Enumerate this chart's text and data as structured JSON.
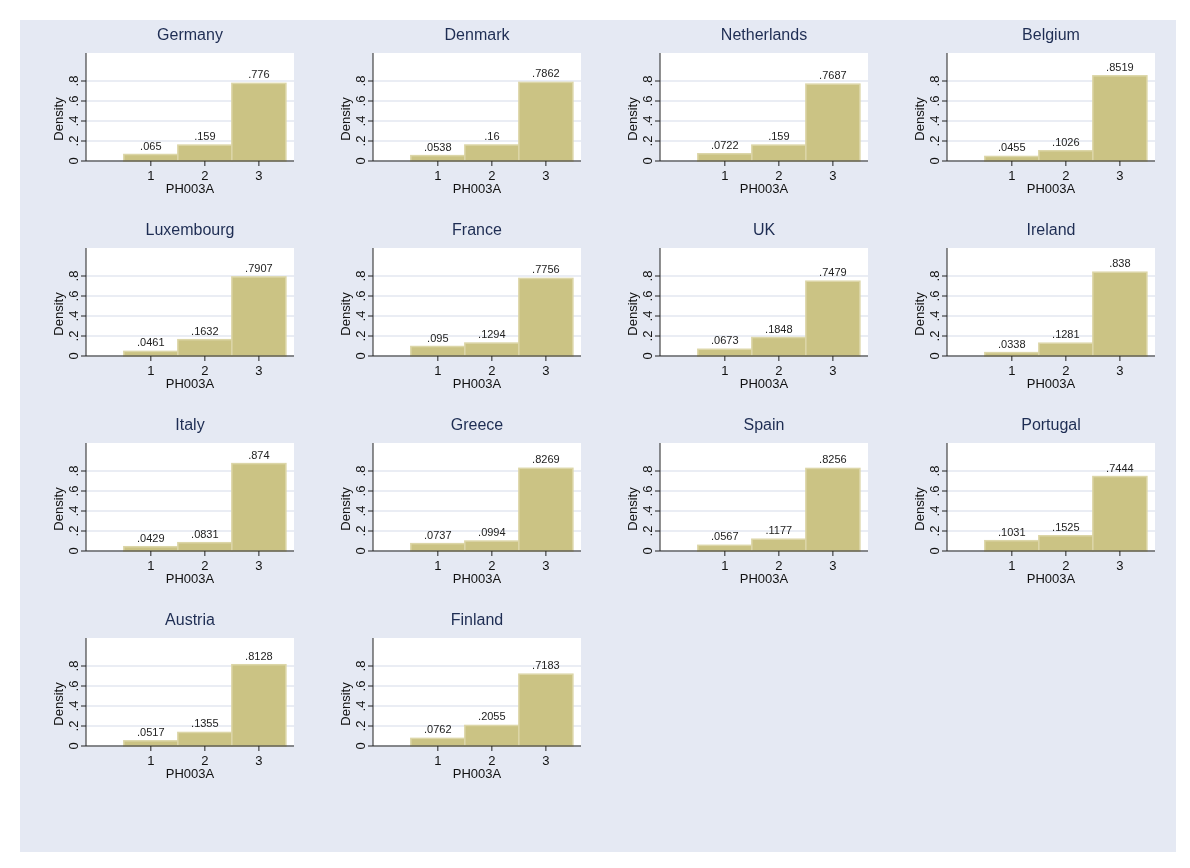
{
  "chart_data": [
    {
      "type": "histogram",
      "title": "Germany",
      "xlabel": "PH003A",
      "ylabel": "Density",
      "bins": [
        0.5,
        1.5,
        2.5,
        3.5
      ],
      "values": [
        0.065,
        0.159,
        0.776
      ],
      "value_labels": [
        ".065",
        ".159",
        ".776"
      ],
      "color": "#cbc384",
      "xlim": [
        -0.2,
        3.65
      ],
      "xticks": [
        1,
        2,
        3
      ],
      "ylim": [
        0,
        1.08
      ],
      "yticks": [
        {
          "value": 0,
          "label": "0"
        },
        {
          "value": 0.2,
          "label": ".2"
        },
        {
          "value": 0.4,
          "label": ".4"
        },
        {
          "value": 0.6,
          "label": ".6"
        },
        {
          "value": 0.8,
          "label": ".8"
        }
      ],
      "grid": "y"
    },
    {
      "type": "histogram",
      "title": "Denmark",
      "xlabel": "PH003A",
      "ylabel": "Density",
      "bins": [
        0.5,
        1.5,
        2.5,
        3.5
      ],
      "values": [
        0.0538,
        0.16,
        0.7862
      ],
      "value_labels": [
        ".0538",
        ".16",
        ".7862"
      ],
      "color": "#cbc384",
      "xlim": [
        -0.2,
        3.65
      ],
      "xticks": [
        1,
        2,
        3
      ],
      "ylim": [
        0,
        1.08
      ],
      "yticks": [
        {
          "value": 0,
          "label": "0"
        },
        {
          "value": 0.2,
          "label": ".2"
        },
        {
          "value": 0.4,
          "label": ".4"
        },
        {
          "value": 0.6,
          "label": ".6"
        },
        {
          "value": 0.8,
          "label": ".8"
        }
      ],
      "grid": "y"
    },
    {
      "type": "histogram",
      "title": "Netherlands",
      "xlabel": "PH003A",
      "ylabel": "Density",
      "bins": [
        0.5,
        1.5,
        2.5,
        3.5
      ],
      "values": [
        0.0722,
        0.159,
        0.7687
      ],
      "value_labels": [
        ".0722",
        ".159",
        ".7687"
      ],
      "color": "#cbc384",
      "xlim": [
        -0.2,
        3.65
      ],
      "xticks": [
        1,
        2,
        3
      ],
      "ylim": [
        0,
        1.08
      ],
      "yticks": [
        {
          "value": 0,
          "label": "0"
        },
        {
          "value": 0.2,
          "label": ".2"
        },
        {
          "value": 0.4,
          "label": ".4"
        },
        {
          "value": 0.6,
          "label": ".6"
        },
        {
          "value": 0.8,
          "label": ".8"
        }
      ],
      "grid": "y"
    },
    {
      "type": "histogram",
      "title": "Belgium",
      "xlabel": "PH003A",
      "ylabel": "Density",
      "bins": [
        0.5,
        1.5,
        2.5,
        3.5
      ],
      "values": [
        0.0455,
        0.1026,
        0.8519
      ],
      "value_labels": [
        ".0455",
        ".1026",
        ".8519"
      ],
      "color": "#cbc384",
      "xlim": [
        -0.2,
        3.65
      ],
      "xticks": [
        1,
        2,
        3
      ],
      "ylim": [
        0,
        1.08
      ],
      "yticks": [
        {
          "value": 0,
          "label": "0"
        },
        {
          "value": 0.2,
          "label": ".2"
        },
        {
          "value": 0.4,
          "label": ".4"
        },
        {
          "value": 0.6,
          "label": ".6"
        },
        {
          "value": 0.8,
          "label": ".8"
        }
      ],
      "grid": "y"
    },
    {
      "type": "histogram",
      "title": "Luxembourg",
      "xlabel": "PH003A",
      "ylabel": "Density",
      "bins": [
        0.5,
        1.5,
        2.5,
        3.5
      ],
      "values": [
        0.0461,
        0.1632,
        0.7907
      ],
      "value_labels": [
        ".0461",
        ".1632",
        ".7907"
      ],
      "color": "#cbc384",
      "xlim": [
        -0.2,
        3.65
      ],
      "xticks": [
        1,
        2,
        3
      ],
      "ylim": [
        0,
        1.08
      ],
      "yticks": [
        {
          "value": 0,
          "label": "0"
        },
        {
          "value": 0.2,
          "label": ".2"
        },
        {
          "value": 0.4,
          "label": ".4"
        },
        {
          "value": 0.6,
          "label": ".6"
        },
        {
          "value": 0.8,
          "label": ".8"
        }
      ],
      "grid": "y"
    },
    {
      "type": "histogram",
      "title": "France",
      "xlabel": "PH003A",
      "ylabel": "Density",
      "bins": [
        0.5,
        1.5,
        2.5,
        3.5
      ],
      "values": [
        0.095,
        0.1294,
        0.7756
      ],
      "value_labels": [
        ".095",
        ".1294",
        ".7756"
      ],
      "color": "#cbc384",
      "xlim": [
        -0.2,
        3.65
      ],
      "xticks": [
        1,
        2,
        3
      ],
      "ylim": [
        0,
        1.08
      ],
      "yticks": [
        {
          "value": 0,
          "label": "0"
        },
        {
          "value": 0.2,
          "label": ".2"
        },
        {
          "value": 0.4,
          "label": ".4"
        },
        {
          "value": 0.6,
          "label": ".6"
        },
        {
          "value": 0.8,
          "label": ".8"
        }
      ],
      "grid": "y"
    },
    {
      "type": "histogram",
      "title": "UK",
      "xlabel": "PH003A",
      "ylabel": "Density",
      "bins": [
        0.5,
        1.5,
        2.5,
        3.5
      ],
      "values": [
        0.0673,
        0.1848,
        0.7479
      ],
      "value_labels": [
        ".0673",
        ".1848",
        ".7479"
      ],
      "color": "#cbc384",
      "xlim": [
        -0.2,
        3.65
      ],
      "xticks": [
        1,
        2,
        3
      ],
      "ylim": [
        0,
        1.08
      ],
      "yticks": [
        {
          "value": 0,
          "label": "0"
        },
        {
          "value": 0.2,
          "label": ".2"
        },
        {
          "value": 0.4,
          "label": ".4"
        },
        {
          "value": 0.6,
          "label": ".6"
        },
        {
          "value": 0.8,
          "label": ".8"
        }
      ],
      "grid": "y"
    },
    {
      "type": "histogram",
      "title": "Ireland",
      "xlabel": "PH003A",
      "ylabel": "Density",
      "bins": [
        0.5,
        1.5,
        2.5,
        3.5
      ],
      "values": [
        0.0338,
        0.1281,
        0.838
      ],
      "value_labels": [
        ".0338",
        ".1281",
        ".838"
      ],
      "color": "#cbc384",
      "xlim": [
        -0.2,
        3.65
      ],
      "xticks": [
        1,
        2,
        3
      ],
      "ylim": [
        0,
        1.08
      ],
      "yticks": [
        {
          "value": 0,
          "label": "0"
        },
        {
          "value": 0.2,
          "label": ".2"
        },
        {
          "value": 0.4,
          "label": ".4"
        },
        {
          "value": 0.6,
          "label": ".6"
        },
        {
          "value": 0.8,
          "label": ".8"
        }
      ],
      "grid": "y"
    },
    {
      "type": "histogram",
      "title": "Italy",
      "xlabel": "PH003A",
      "ylabel": "Density",
      "bins": [
        0.5,
        1.5,
        2.5,
        3.5
      ],
      "values": [
        0.0429,
        0.0831,
        0.874
      ],
      "value_labels": [
        ".0429",
        ".0831",
        ".874"
      ],
      "color": "#cbc384",
      "xlim": [
        -0.2,
        3.65
      ],
      "xticks": [
        1,
        2,
        3
      ],
      "ylim": [
        0,
        1.08
      ],
      "yticks": [
        {
          "value": 0,
          "label": "0"
        },
        {
          "value": 0.2,
          "label": ".2"
        },
        {
          "value": 0.4,
          "label": ".4"
        },
        {
          "value": 0.6,
          "label": ".6"
        },
        {
          "value": 0.8,
          "label": ".8"
        }
      ],
      "grid": "y"
    },
    {
      "type": "histogram",
      "title": "Greece",
      "xlabel": "PH003A",
      "ylabel": "Density",
      "bins": [
        0.5,
        1.5,
        2.5,
        3.5
      ],
      "values": [
        0.0737,
        0.0994,
        0.8269
      ],
      "value_labels": [
        ".0737",
        ".0994",
        ".8269"
      ],
      "color": "#cbc384",
      "xlim": [
        -0.2,
        3.65
      ],
      "xticks": [
        1,
        2,
        3
      ],
      "ylim": [
        0,
        1.08
      ],
      "yticks": [
        {
          "value": 0,
          "label": "0"
        },
        {
          "value": 0.2,
          "label": ".2"
        },
        {
          "value": 0.4,
          "label": ".4"
        },
        {
          "value": 0.6,
          "label": ".6"
        },
        {
          "value": 0.8,
          "label": ".8"
        }
      ],
      "grid": "y"
    },
    {
      "type": "histogram",
      "title": "Spain",
      "xlabel": "PH003A",
      "ylabel": "Density",
      "bins": [
        0.5,
        1.5,
        2.5,
        3.5
      ],
      "values": [
        0.0567,
        0.1177,
        0.8256
      ],
      "value_labels": [
        ".0567",
        ".1177",
        ".8256"
      ],
      "color": "#cbc384",
      "xlim": [
        -0.2,
        3.65
      ],
      "xticks": [
        1,
        2,
        3
      ],
      "ylim": [
        0,
        1.08
      ],
      "yticks": [
        {
          "value": 0,
          "label": "0"
        },
        {
          "value": 0.2,
          "label": ".2"
        },
        {
          "value": 0.4,
          "label": ".4"
        },
        {
          "value": 0.6,
          "label": ".6"
        },
        {
          "value": 0.8,
          "label": ".8"
        }
      ],
      "grid": "y"
    },
    {
      "type": "histogram",
      "title": "Portugal",
      "xlabel": "PH003A",
      "ylabel": "Density",
      "bins": [
        0.5,
        1.5,
        2.5,
        3.5
      ],
      "values": [
        0.1031,
        0.1525,
        0.7444
      ],
      "value_labels": [
        ".1031",
        ".1525",
        ".7444"
      ],
      "color": "#cbc384",
      "xlim": [
        -0.2,
        3.65
      ],
      "xticks": [
        1,
        2,
        3
      ],
      "ylim": [
        0,
        1.08
      ],
      "yticks": [
        {
          "value": 0,
          "label": "0"
        },
        {
          "value": 0.2,
          "label": ".2"
        },
        {
          "value": 0.4,
          "label": ".4"
        },
        {
          "value": 0.6,
          "label": ".6"
        },
        {
          "value": 0.8,
          "label": ".8"
        }
      ],
      "grid": "y"
    },
    {
      "type": "histogram",
      "title": "Austria",
      "xlabel": "PH003A",
      "ylabel": "Density",
      "bins": [
        0.5,
        1.5,
        2.5,
        3.5
      ],
      "values": [
        0.0517,
        0.1355,
        0.8128
      ],
      "value_labels": [
        ".0517",
        ".1355",
        ".8128"
      ],
      "color": "#cbc384",
      "xlim": [
        -0.2,
        3.65
      ],
      "xticks": [
        1,
        2,
        3
      ],
      "ylim": [
        0,
        1.08
      ],
      "yticks": [
        {
          "value": 0,
          "label": "0"
        },
        {
          "value": 0.2,
          "label": ".2"
        },
        {
          "value": 0.4,
          "label": ".4"
        },
        {
          "value": 0.6,
          "label": ".6"
        },
        {
          "value": 0.8,
          "label": ".8"
        }
      ],
      "grid": "y"
    },
    {
      "type": "histogram",
      "title": "Finland",
      "xlabel": "PH003A",
      "ylabel": "Density",
      "bins": [
        0.5,
        1.5,
        2.5,
        3.5
      ],
      "values": [
        0.0762,
        0.2055,
        0.7183
      ],
      "value_labels": [
        ".0762",
        ".2055",
        ".7183"
      ],
      "color": "#cbc384",
      "xlim": [
        -0.2,
        3.65
      ],
      "xticks": [
        1,
        2,
        3
      ],
      "ylim": [
        0,
        1.08
      ],
      "yticks": [
        {
          "value": 0,
          "label": "0"
        },
        {
          "value": 0.2,
          "label": ".2"
        },
        {
          "value": 0.4,
          "label": ".4"
        },
        {
          "value": 0.6,
          "label": ".6"
        },
        {
          "value": 0.8,
          "label": ".8"
        }
      ],
      "grid": "y"
    }
  ]
}
